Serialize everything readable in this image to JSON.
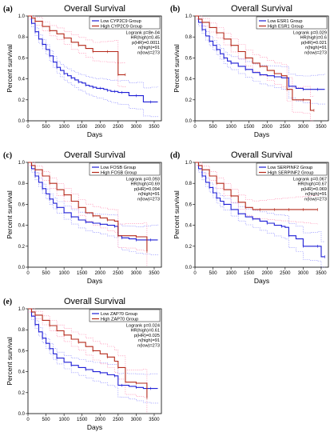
{
  "chart_data": [
    {
      "type": "line",
      "panel_label": "(a)",
      "title": "Overall Survival",
      "xlabel": "Days",
      "ylabel": "Percent survival",
      "xlim": [
        0,
        3700
      ],
      "ylim": [
        0,
        1.0
      ],
      "xticks": [
        0,
        500,
        1000,
        1500,
        2000,
        2500,
        3000,
        3500
      ],
      "yticks": [
        0.0,
        0.2,
        0.4,
        0.6,
        0.8,
        1.0
      ],
      "legend_position": "top-right",
      "legend": [
        "Low CYP2C9 Group",
        "High CYP2C9 Group"
      ],
      "stats": [
        "Logrank p=8e-04",
        "HR(high)=0.45",
        "p(HR)=0.0011",
        "n(high)=91",
        "n(low)=273"
      ],
      "series": [
        {
          "name": "Low CYP2C9 Group",
          "color": "#1f1fd6",
          "x": [
            0,
            100,
            200,
            300,
            400,
            500,
            600,
            700,
            800,
            900,
            1000,
            1100,
            1200,
            1300,
            1400,
            1500,
            1600,
            1700,
            1800,
            1900,
            2000,
            2100,
            2200,
            2300,
            2400,
            2500,
            2600,
            2800,
            3000,
            3200,
            3400,
            3600
          ],
          "y": [
            1.0,
            0.93,
            0.85,
            0.78,
            0.73,
            0.68,
            0.62,
            0.56,
            0.51,
            0.48,
            0.45,
            0.43,
            0.41,
            0.39,
            0.37,
            0.36,
            0.34,
            0.33,
            0.32,
            0.31,
            0.31,
            0.3,
            0.29,
            0.28,
            0.28,
            0.27,
            0.27,
            0.24,
            0.24,
            0.18,
            0.18,
            0.18
          ]
        },
        {
          "name": "High CYP2C9 Group",
          "color": "#b52a1b",
          "x": [
            0,
            100,
            200,
            400,
            600,
            800,
            1000,
            1200,
            1400,
            1600,
            1800,
            2000,
            2200,
            2400,
            2500,
            2600,
            2700
          ],
          "y": [
            1.0,
            0.98,
            0.95,
            0.9,
            0.86,
            0.83,
            0.79,
            0.75,
            0.72,
            0.69,
            0.66,
            0.66,
            0.66,
            0.66,
            0.44,
            0.44,
            0.44
          ]
        }
      ]
    },
    {
      "type": "line",
      "panel_label": "(b)",
      "title": "Overall Survival",
      "xlabel": "Days",
      "ylabel": "Percent survival",
      "xlim": [
        0,
        3700
      ],
      "ylim": [
        0,
        1.0
      ],
      "xticks": [
        0,
        500,
        1000,
        1500,
        2000,
        2500,
        3000,
        3500
      ],
      "yticks": [
        0.0,
        0.2,
        0.4,
        0.6,
        0.8,
        1.0
      ],
      "legend_position": "top-right",
      "legend": [
        "Low ESR1 Group",
        "High ESR1 Group"
      ],
      "stats": [
        "Logrank p=0.029",
        "HR(high)=0.6",
        "p(HR)=0.021",
        "n(high)=91",
        "n(low)=273"
      ],
      "series": [
        {
          "name": "Low ESR1 Group",
          "color": "#1f1fd6",
          "x": [
            0,
            100,
            200,
            300,
            400,
            500,
            600,
            700,
            800,
            900,
            1000,
            1200,
            1400,
            1600,
            1800,
            2000,
            2200,
            2400,
            2600,
            2800,
            3000,
            3200,
            3400,
            3600
          ],
          "y": [
            1.0,
            0.94,
            0.87,
            0.81,
            0.76,
            0.72,
            0.68,
            0.64,
            0.6,
            0.57,
            0.55,
            0.52,
            0.49,
            0.46,
            0.44,
            0.43,
            0.42,
            0.41,
            0.33,
            0.31,
            0.3,
            0.3,
            0.3,
            0.3
          ]
        },
        {
          "name": "High ESR1 Group",
          "color": "#b52a1b",
          "x": [
            0,
            100,
            200,
            400,
            600,
            800,
            1000,
            1200,
            1400,
            1600,
            1800,
            2000,
            2200,
            2400,
            2550,
            2700,
            3000,
            3200,
            3300
          ],
          "y": [
            1.0,
            0.97,
            0.94,
            0.89,
            0.84,
            0.78,
            0.72,
            0.66,
            0.6,
            0.55,
            0.52,
            0.48,
            0.45,
            0.43,
            0.3,
            0.2,
            0.2,
            0.1,
            0.1
          ]
        }
      ]
    },
    {
      "type": "line",
      "panel_label": "(c)",
      "title": "Overall Survival",
      "xlabel": "Days",
      "ylabel": "Percent survival",
      "xlim": [
        0,
        3700
      ],
      "ylim": [
        0,
        1.0
      ],
      "xticks": [
        0,
        500,
        1000,
        1500,
        2000,
        2500,
        3000,
        3500
      ],
      "yticks": [
        0.0,
        0.2,
        0.4,
        0.6,
        0.8,
        1.0
      ],
      "legend_position": "top-right",
      "legend": [
        "Low FOSB Group",
        "High FOSB Group"
      ],
      "stats": [
        "Logrank p=0.093",
        "HR(high)=0.69",
        "p(HR)=0.094",
        "n(high)=91",
        "n(low)=273"
      ],
      "series": [
        {
          "name": "Low FOSB Group",
          "color": "#1f1fd6",
          "x": [
            0,
            100,
            200,
            300,
            400,
            500,
            600,
            700,
            800,
            1000,
            1200,
            1400,
            1600,
            1800,
            2000,
            2200,
            2400,
            2500,
            2600,
            2800,
            3000,
            3200,
            3400,
            3600
          ],
          "y": [
            1.0,
            0.94,
            0.87,
            0.81,
            0.75,
            0.7,
            0.65,
            0.61,
            0.57,
            0.52,
            0.48,
            0.45,
            0.43,
            0.42,
            0.41,
            0.4,
            0.39,
            0.3,
            0.28,
            0.27,
            0.26,
            0.26,
            0.26,
            0.26
          ]
        },
        {
          "name": "High FOSB Group",
          "color": "#b52a1b",
          "x": [
            0,
            100,
            200,
            400,
            600,
            800,
            1000,
            1200,
            1400,
            1600,
            1800,
            2000,
            2200,
            2400,
            2500,
            2700,
            3000,
            3200,
            3300
          ],
          "y": [
            1.0,
            0.97,
            0.93,
            0.87,
            0.8,
            0.74,
            0.69,
            0.63,
            0.57,
            0.52,
            0.49,
            0.47,
            0.45,
            0.44,
            0.3,
            0.3,
            0.29,
            0.29,
            0.15
          ]
        }
      ]
    },
    {
      "type": "line",
      "panel_label": "(d)",
      "title": "Overall Survival",
      "xlabel": "Days",
      "ylabel": "Percent survival",
      "xlim": [
        0,
        3700
      ],
      "ylim": [
        0,
        1.0
      ],
      "xticks": [
        0,
        500,
        1000,
        1500,
        2000,
        2500,
        3000,
        3500
      ],
      "yticks": [
        0.0,
        0.2,
        0.4,
        0.6,
        0.8,
        1.0
      ],
      "legend_position": "top-right",
      "legend": [
        "Low SERPINF2 Group",
        "High SERPINF2 Group"
      ],
      "stats": [
        "Logrank p=0.067",
        "HR(high)=0.67",
        "p(HR)=0.069",
        "n(high)=91",
        "n(low)=273"
      ],
      "series": [
        {
          "name": "Low SERPINF2 Group",
          "color": "#1f1fd6",
          "x": [
            0,
            100,
            200,
            300,
            400,
            500,
            600,
            700,
            800,
            1000,
            1200,
            1400,
            1600,
            1800,
            2000,
            2200,
            2400,
            2500,
            2600,
            2800,
            3000,
            3200,
            3400,
            3500,
            3600
          ],
          "y": [
            1.0,
            0.94,
            0.87,
            0.81,
            0.76,
            0.71,
            0.66,
            0.63,
            0.6,
            0.55,
            0.51,
            0.48,
            0.46,
            0.44,
            0.42,
            0.4,
            0.39,
            0.38,
            0.3,
            0.27,
            0.2,
            0.2,
            0.2,
            0.1,
            0.1
          ]
        },
        {
          "name": "High SERPINF2 Group",
          "color": "#b52a1b",
          "x": [
            0,
            100,
            200,
            400,
            600,
            800,
            1000,
            1200,
            1400,
            1600,
            1800,
            2000,
            2200,
            2400,
            2600,
            2800,
            3000,
            3200,
            3400
          ],
          "y": [
            1.0,
            0.97,
            0.93,
            0.87,
            0.8,
            0.74,
            0.68,
            0.62,
            0.57,
            0.55,
            0.55,
            0.55,
            0.55,
            0.55,
            0.55,
            0.55,
            0.55,
            0.55,
            0.55
          ]
        }
      ]
    },
    {
      "type": "line",
      "panel_label": "(e)",
      "title": "Overall Survival",
      "xlabel": "Days",
      "ylabel": "Percent survival",
      "xlim": [
        0,
        3700
      ],
      "ylim": [
        0,
        1.0
      ],
      "xticks": [
        0,
        500,
        1000,
        1500,
        2000,
        2500,
        3000,
        3500
      ],
      "yticks": [
        0.0,
        0.2,
        0.4,
        0.6,
        0.8,
        1.0
      ],
      "legend_position": "top-right",
      "legend": [
        "Low ZAP70 Group",
        "High ZAP70 Group"
      ],
      "stats": [
        "Logrank p=0.024",
        "HR(high)=0.61",
        "p(HR)=0.025",
        "n(high)=91",
        "n(low)=273"
      ],
      "series": [
        {
          "name": "Low ZAP70 Group",
          "color": "#1f1fd6",
          "x": [
            0,
            100,
            200,
            300,
            400,
            500,
            600,
            700,
            800,
            1000,
            1200,
            1400,
            1600,
            1800,
            2000,
            2200,
            2400,
            2500,
            2600,
            2800,
            3000,
            3200,
            3400,
            3600
          ],
          "y": [
            1.0,
            0.93,
            0.85,
            0.78,
            0.72,
            0.67,
            0.62,
            0.57,
            0.53,
            0.49,
            0.46,
            0.44,
            0.42,
            0.4,
            0.39,
            0.37,
            0.36,
            0.27,
            0.27,
            0.26,
            0.25,
            0.24,
            0.24,
            0.24
          ]
        },
        {
          "name": "High ZAP70 Group",
          "color": "#b52a1b",
          "x": [
            0,
            100,
            200,
            400,
            600,
            800,
            1000,
            1200,
            1400,
            1600,
            1800,
            2000,
            2200,
            2400,
            2500,
            2700,
            3000,
            3200,
            3300
          ],
          "y": [
            1.0,
            0.97,
            0.94,
            0.89,
            0.84,
            0.79,
            0.75,
            0.71,
            0.68,
            0.64,
            0.6,
            0.57,
            0.54,
            0.5,
            0.44,
            0.3,
            0.29,
            0.29,
            0.15
          ]
        }
      ]
    }
  ]
}
